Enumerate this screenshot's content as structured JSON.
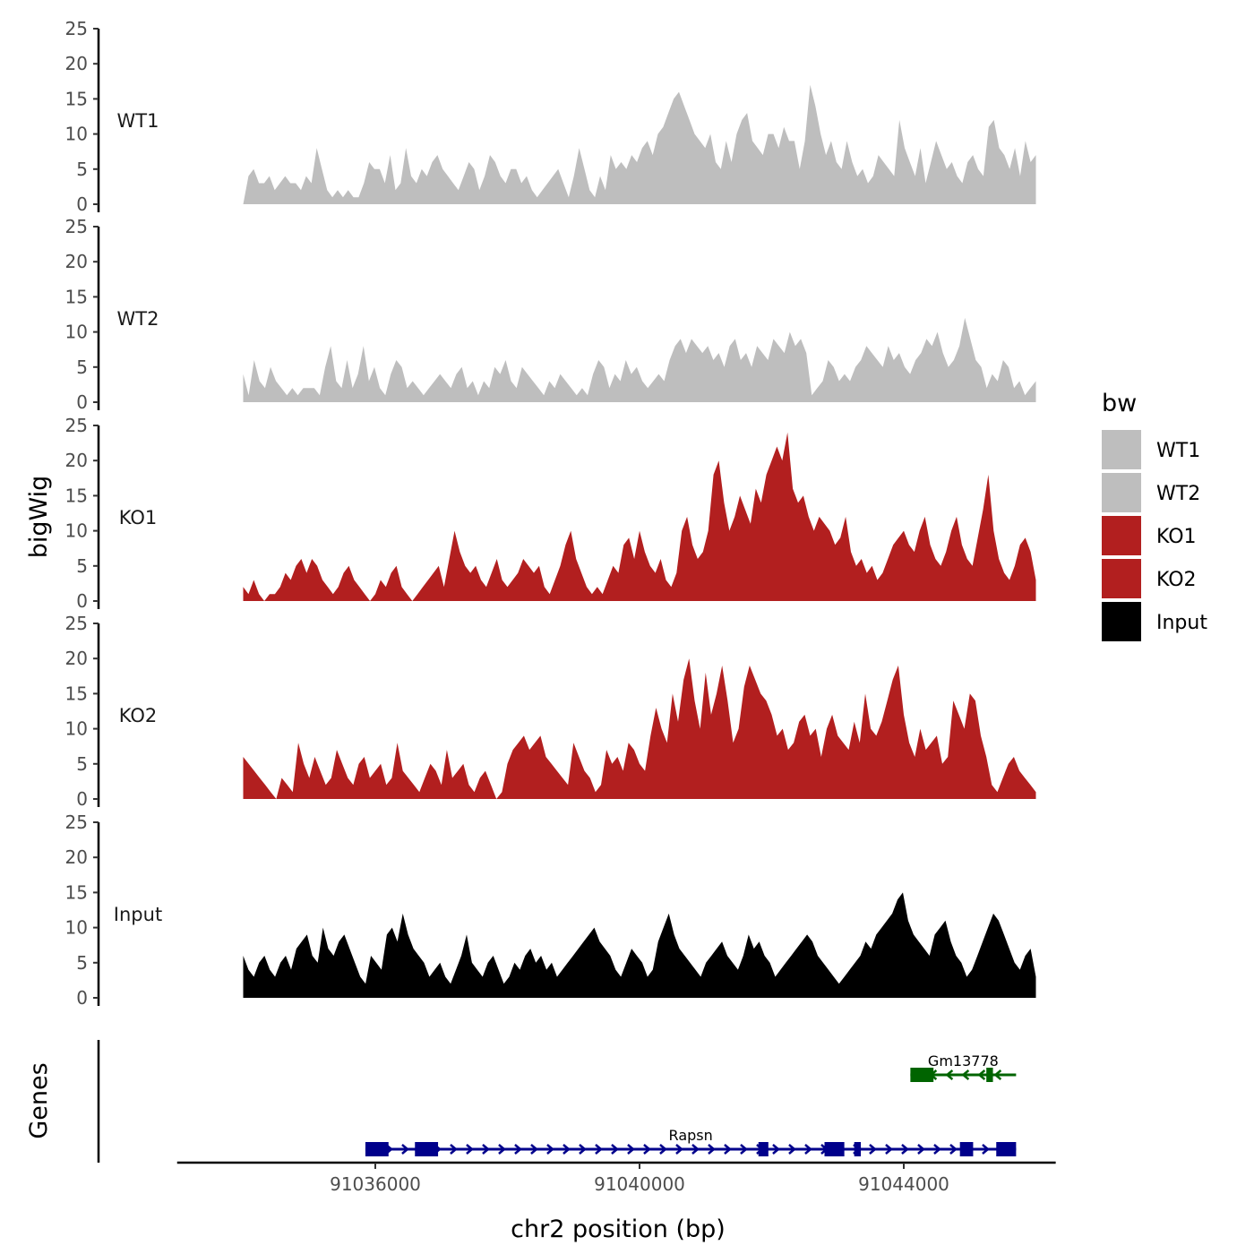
{
  "chart_data": {
    "type": "area",
    "title": "",
    "ylabel": "bigWig",
    "xlabel": "chr2 position (bp)",
    "genes_label": "Genes",
    "ylim": [
      0,
      25
    ],
    "y_ticks": [
      0,
      5,
      10,
      15,
      20,
      25
    ],
    "x_ticks": [
      91036000,
      91040000,
      91044000
    ],
    "x_tick_labels": [
      "91036000",
      "91040000",
      "91044000"
    ],
    "x_range": [
      91033000,
      91046300
    ],
    "data_range": [
      91034000,
      91046000
    ],
    "legend": {
      "title": "bw",
      "items": [
        {
          "label": "WT1",
          "color": "#bebebe"
        },
        {
          "label": "WT2",
          "color": "#bebebe"
        },
        {
          "label": "KO1",
          "color": "#b21f1f"
        },
        {
          "label": "KO2",
          "color": "#b21f1f"
        },
        {
          "label": "Input",
          "color": "#000000"
        }
      ]
    },
    "series": [
      {
        "name": "WT1",
        "color": "#bebebe",
        "values": [
          0,
          4,
          5,
          3,
          3,
          4,
          2,
          3,
          4,
          3,
          3,
          2,
          4,
          3,
          8,
          5,
          2,
          1,
          2,
          1,
          2,
          1,
          1,
          3,
          6,
          5,
          5,
          3,
          7,
          2,
          3,
          8,
          4,
          3,
          5,
          4,
          6,
          7,
          5,
          4,
          3,
          2,
          4,
          6,
          5,
          2,
          4,
          7,
          6,
          4,
          3,
          5,
          5,
          3,
          4,
          2,
          1,
          2,
          3,
          4,
          5,
          3,
          1,
          4,
          8,
          5,
          2,
          1,
          4,
          2,
          7,
          5,
          6,
          5,
          7,
          6,
          8,
          9,
          7,
          10,
          11,
          13,
          15,
          16,
          14,
          12,
          10,
          9,
          8,
          10,
          6,
          5,
          9,
          6,
          10,
          12,
          13,
          9,
          8,
          7,
          10,
          10,
          8,
          11,
          9,
          9,
          5,
          9,
          17,
          14,
          10,
          7,
          9,
          6,
          5,
          9,
          6,
          4,
          5,
          3,
          4,
          7,
          6,
          5,
          4,
          12,
          8,
          6,
          4,
          8,
          3,
          6,
          9,
          7,
          5,
          6,
          4,
          3,
          6,
          7,
          5,
          4,
          11,
          12,
          8,
          7,
          5,
          8,
          4,
          9,
          6,
          7
        ]
      },
      {
        "name": "WT2",
        "color": "#bebebe",
        "values": [
          4,
          1,
          6,
          3,
          2,
          5,
          3,
          2,
          1,
          2,
          1,
          2,
          2,
          2,
          1,
          5,
          8,
          3,
          2,
          6,
          2,
          4,
          8,
          3,
          5,
          2,
          1,
          4,
          6,
          5,
          2,
          3,
          2,
          1,
          2,
          3,
          4,
          3,
          2,
          4,
          5,
          2,
          3,
          1,
          3,
          2,
          5,
          4,
          6,
          3,
          2,
          5,
          4,
          3,
          2,
          1,
          3,
          2,
          4,
          3,
          2,
          1,
          2,
          1,
          4,
          6,
          5,
          2,
          4,
          3,
          6,
          4,
          5,
          3,
          2,
          3,
          4,
          3,
          6,
          8,
          9,
          7,
          9,
          8,
          7,
          8,
          6,
          7,
          5,
          8,
          9,
          6,
          7,
          5,
          8,
          7,
          6,
          9,
          8,
          7,
          10,
          8,
          9,
          7,
          1,
          2,
          3,
          6,
          5,
          3,
          4,
          3,
          5,
          6,
          8,
          7,
          6,
          5,
          8,
          6,
          7,
          5,
          4,
          6,
          7,
          9,
          8,
          10,
          7,
          5,
          6,
          8,
          12,
          9,
          6,
          5,
          2,
          4,
          3,
          6,
          5,
          2,
          3,
          1,
          2,
          3
        ]
      },
      {
        "name": "KO1",
        "color": "#b21f1f",
        "values": [
          2,
          1,
          3,
          1,
          0,
          1,
          1,
          2,
          4,
          3,
          5,
          6,
          4,
          6,
          5,
          3,
          2,
          1,
          2,
          4,
          5,
          3,
          2,
          1,
          0,
          1,
          3,
          2,
          4,
          5,
          2,
          1,
          0,
          1,
          2,
          3,
          4,
          5,
          2,
          6,
          10,
          7,
          5,
          4,
          5,
          3,
          2,
          4,
          6,
          3,
          2,
          3,
          4,
          6,
          5,
          4,
          5,
          2,
          1,
          3,
          5,
          8,
          10,
          6,
          4,
          2,
          1,
          2,
          1,
          3,
          5,
          4,
          8,
          9,
          6,
          10,
          7,
          5,
          4,
          6,
          3,
          2,
          4,
          10,
          12,
          8,
          6,
          7,
          10,
          18,
          20,
          14,
          10,
          12,
          15,
          13,
          11,
          16,
          14,
          18,
          20,
          22,
          20,
          24,
          16,
          14,
          15,
          12,
          10,
          12,
          11,
          10,
          8,
          9,
          12,
          7,
          5,
          6,
          4,
          5,
          3,
          4,
          6,
          8,
          9,
          10,
          8,
          7,
          10,
          12,
          8,
          6,
          5,
          7,
          10,
          12,
          8,
          6,
          5,
          9,
          13,
          18,
          10,
          6,
          4,
          3,
          5,
          8,
          9,
          7,
          3
        ]
      },
      {
        "name": "KO2",
        "color": "#b21f1f",
        "values": [
          6,
          5,
          4,
          3,
          2,
          1,
          0,
          3,
          2,
          1,
          8,
          5,
          3,
          6,
          4,
          2,
          3,
          7,
          5,
          3,
          2,
          5,
          6,
          3,
          4,
          5,
          2,
          3,
          8,
          4,
          3,
          2,
          1,
          3,
          5,
          4,
          2,
          7,
          3,
          4,
          5,
          2,
          1,
          3,
          4,
          2,
          0,
          1,
          5,
          7,
          8,
          9,
          7,
          8,
          9,
          6,
          5,
          4,
          3,
          2,
          8,
          6,
          4,
          3,
          1,
          2,
          7,
          5,
          6,
          4,
          8,
          7,
          5,
          4,
          9,
          13,
          10,
          8,
          15,
          11,
          17,
          20,
          14,
          10,
          18,
          12,
          15,
          19,
          14,
          8,
          10,
          16,
          19,
          17,
          15,
          14,
          12,
          9,
          10,
          7,
          8,
          11,
          12,
          9,
          10,
          6,
          10,
          12,
          9,
          8,
          7,
          11,
          8,
          15,
          10,
          9,
          11,
          14,
          17,
          19,
          12,
          8,
          6,
          10,
          7,
          8,
          9,
          5,
          6,
          14,
          12,
          10,
          15,
          14,
          9,
          6,
          2,
          1,
          3,
          5,
          6,
          4,
          3,
          2,
          1
        ]
      },
      {
        "name": "Input",
        "color": "#000000",
        "values": [
          6,
          4,
          3,
          5,
          6,
          4,
          3,
          5,
          6,
          4,
          7,
          8,
          9,
          6,
          5,
          10,
          7,
          6,
          8,
          9,
          7,
          5,
          3,
          2,
          6,
          5,
          4,
          9,
          10,
          8,
          12,
          9,
          7,
          6,
          5,
          3,
          4,
          5,
          3,
          2,
          4,
          6,
          9,
          5,
          4,
          3,
          5,
          6,
          4,
          2,
          3,
          5,
          4,
          6,
          7,
          5,
          6,
          4,
          5,
          3,
          4,
          5,
          6,
          7,
          8,
          9,
          10,
          8,
          7,
          6,
          4,
          3,
          5,
          7,
          6,
          5,
          3,
          4,
          8,
          10,
          12,
          9,
          7,
          6,
          5,
          4,
          3,
          5,
          6,
          7,
          8,
          6,
          5,
          4,
          6,
          9,
          7,
          8,
          6,
          5,
          3,
          4,
          5,
          6,
          7,
          8,
          9,
          8,
          6,
          5,
          4,
          3,
          2,
          3,
          4,
          5,
          6,
          8,
          7,
          9,
          10,
          11,
          12,
          14,
          15,
          11,
          9,
          8,
          7,
          6,
          9,
          10,
          11,
          8,
          6,
          5,
          3,
          4,
          6,
          8,
          10,
          12,
          11,
          9,
          7,
          5,
          4,
          6,
          7,
          3
        ]
      }
    ],
    "genes": [
      {
        "name": "Rapsn",
        "start": 91035850,
        "end": 91045700,
        "strand": "+",
        "color": "#00008b",
        "exons": [
          [
            91035850,
            91036200
          ],
          [
            91036600,
            91036950
          ],
          [
            91041800,
            91041950
          ],
          [
            91042800,
            91043100
          ],
          [
            91043250,
            91043350
          ],
          [
            91044850,
            91045050
          ],
          [
            91045400,
            91045700
          ]
        ]
      },
      {
        "name": "Gm13778",
        "start": 91044100,
        "end": 91045700,
        "strand": "-",
        "color": "#006400",
        "exons": [
          [
            91044100,
            91044450
          ],
          [
            91045250,
            91045350
          ]
        ]
      }
    ]
  }
}
